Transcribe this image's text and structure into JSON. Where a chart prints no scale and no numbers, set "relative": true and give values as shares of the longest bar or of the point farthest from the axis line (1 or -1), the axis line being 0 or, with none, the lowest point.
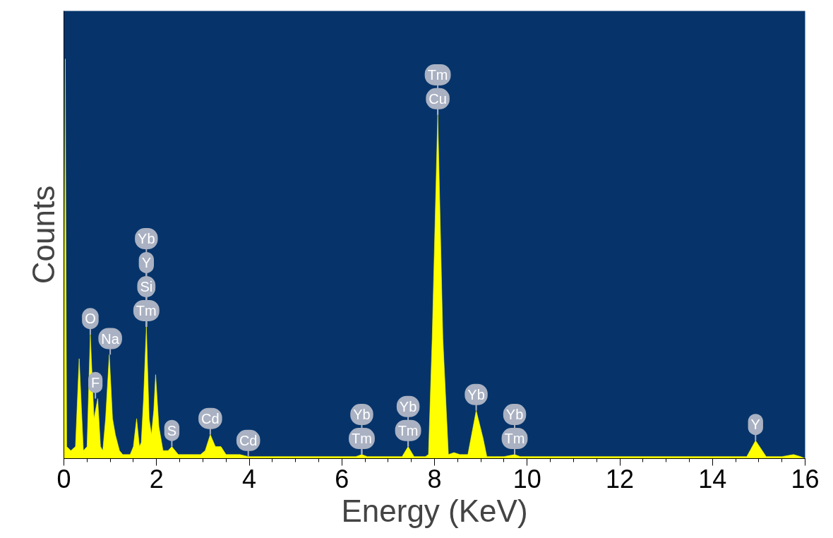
{
  "chart_data": {
    "type": "area",
    "relative": true,
    "xlabel": "Energy (KeV)",
    "ylabel": "Counts",
    "color": "#ffff00",
    "x": [
      0.0,
      0.03,
      0.06,
      0.15,
      0.25,
      0.33,
      0.42,
      0.5,
      0.57,
      0.65,
      0.73,
      0.79,
      0.84,
      0.9,
      0.98,
      1.05,
      1.11,
      1.2,
      1.27,
      1.35,
      1.43,
      1.5,
      1.57,
      1.63,
      1.67,
      1.72,
      1.78,
      1.84,
      1.89,
      1.94,
      1.98,
      2.05,
      2.14,
      2.25,
      2.33,
      2.4,
      2.47,
      2.6,
      2.78,
      2.95,
      3.05,
      3.16,
      3.27,
      3.39,
      3.5,
      3.6,
      3.8,
      3.98,
      4.2,
      5.0,
      6.0,
      6.3,
      6.43,
      6.55,
      7.0,
      7.3,
      7.43,
      7.56,
      7.8,
      7.87,
      7.95,
      8.07,
      8.18,
      8.3,
      8.42,
      8.55,
      8.72,
      8.9,
      9.05,
      9.13,
      9.5,
      9.73,
      9.85,
      10.5,
      12.0,
      14.0,
      14.74,
      14.93,
      15.16,
      15.5,
      15.75,
      15.9,
      16.0
    ],
    "values": [
      0.0,
      1.0,
      0.03,
      0.02,
      0.03,
      0.25,
      0.02,
      0.03,
      0.31,
      0.1,
      0.15,
      0.03,
      0.02,
      0.1,
      0.26,
      0.1,
      0.06,
      0.02,
      0.01,
      0.01,
      0.01,
      0.03,
      0.1,
      0.03,
      0.04,
      0.15,
      0.33,
      0.1,
      0.06,
      0.12,
      0.21,
      0.08,
      0.02,
      0.02,
      0.03,
      0.02,
      0.01,
      0.01,
      0.01,
      0.01,
      0.02,
      0.06,
      0.03,
      0.03,
      0.01,
      0.01,
      0.01,
      0.005,
      0.005,
      0.005,
      0.005,
      0.005,
      0.01,
      0.005,
      0.005,
      0.005,
      0.03,
      0.005,
      0.005,
      0.01,
      0.3,
      0.86,
      0.3,
      0.01,
      0.015,
      0.01,
      0.01,
      0.12,
      0.05,
      0.005,
      0.005,
      0.01,
      0.005,
      0.005,
      0.005,
      0.005,
      0.005,
      0.045,
      0.005,
      0.005,
      0.01,
      0.005,
      0.0
    ],
    "xlim": [
      0,
      16
    ],
    "xticks": [
      0,
      2,
      4,
      6,
      8,
      10,
      12,
      14,
      16
    ],
    "tick_labels": "x",
    "grid": false,
    "annotations": [
      {
        "text": "O",
        "x": 0.57,
        "y": 0.31
      },
      {
        "text": "F",
        "x": 0.68,
        "y": 0.15
      },
      {
        "text": "Na",
        "x": 1.0,
        "y": 0.26
      },
      {
        "text": "Tm",
        "x": 1.78,
        "y": 0.33
      },
      {
        "text": "Si",
        "x": 1.78,
        "y": 0.33
      },
      {
        "text": "Y",
        "x": 1.78,
        "y": 0.33
      },
      {
        "text": "Yb",
        "x": 1.78,
        "y": 0.33
      },
      {
        "text": "S",
        "x": 2.33,
        "y": 0.03
      },
      {
        "text": "Cd",
        "x": 3.16,
        "y": 0.06
      },
      {
        "text": "Cd",
        "x": 3.98,
        "y": 0.005
      },
      {
        "text": "Tm",
        "x": 6.43,
        "y": 0.01
      },
      {
        "text": "Yb",
        "x": 6.43,
        "y": 0.01
      },
      {
        "text": "Tm",
        "x": 7.43,
        "y": 0.03
      },
      {
        "text": "Yb",
        "x": 7.43,
        "y": 0.03
      },
      {
        "text": "Cu",
        "x": 8.07,
        "y": 0.86
      },
      {
        "text": "Tm",
        "x": 8.07,
        "y": 0.86
      },
      {
        "text": "Yb",
        "x": 8.9,
        "y": 0.12
      },
      {
        "text": "Tm",
        "x": 9.73,
        "y": 0.01
      },
      {
        "text": "Yb",
        "x": 9.73,
        "y": 0.01
      },
      {
        "text": "Y",
        "x": 14.93,
        "y": 0.045
      }
    ]
  }
}
